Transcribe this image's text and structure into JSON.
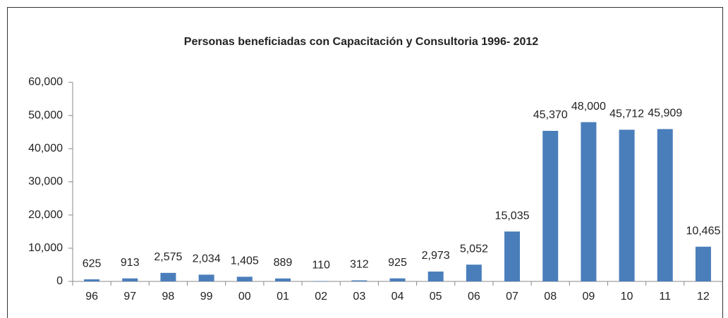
{
  "chart_data": {
    "type": "bar",
    "title": "Personas beneficiadas con Capacitación y Consultoria 1996- 2012",
    "categories": [
      "96",
      "97",
      "98",
      "99",
      "00",
      "01",
      "02",
      "03",
      "04",
      "05",
      "06",
      "07",
      "08",
      "09",
      "10",
      "11",
      "12"
    ],
    "values": [
      625,
      913,
      2575,
      2034,
      1405,
      889,
      110,
      312,
      925,
      2973,
      5052,
      15035,
      45370,
      48000,
      45712,
      45909,
      10465
    ],
    "value_labels": [
      "625",
      "913",
      "2,575",
      "2,034",
      "1,405",
      "889",
      "110",
      "312",
      "925",
      "2,973",
      "5,052",
      "15,035",
      "45,370",
      "48,000",
      "45,712",
      "45,909",
      "10,465"
    ],
    "color": "#4a7ebb",
    "ylim": [
      0,
      60000
    ],
    "yticks": [
      0,
      {
        "value": 10000,
        "label": "10,000"
      },
      {
        "value": 20000,
        "label": "20,000"
      },
      {
        "value": 30000,
        "label": "30,000"
      },
      {
        "value": 40000,
        "label": "40,000"
      },
      {
        "value": 50000,
        "label": "50,000"
      },
      {
        "value": 60000,
        "label": "60,000"
      }
    ],
    "grid": false
  }
}
